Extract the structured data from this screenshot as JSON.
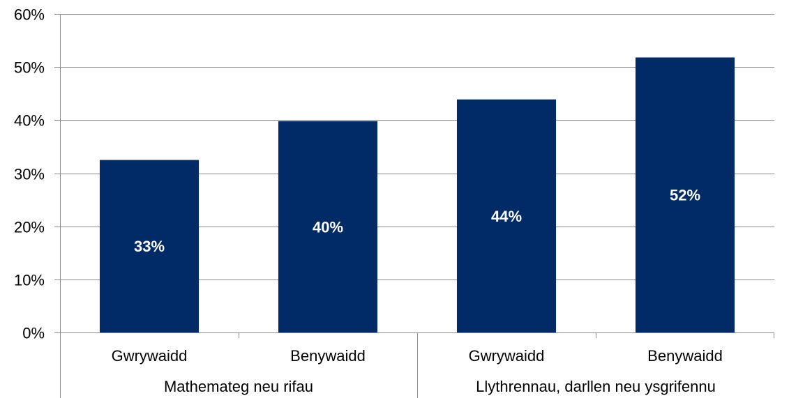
{
  "chart_data": {
    "type": "bar",
    "groups": [
      {
        "label": "Mathemateg neu rifau",
        "categories": [
          "Gwrywaidd",
          "Benywaidd"
        ]
      },
      {
        "label": "Llythrennau, darllen neu ysgrifennu",
        "categories": [
          "Gwrywaidd",
          "Benywaidd"
        ]
      }
    ],
    "categories": [
      "Gwrywaidd",
      "Benywaidd",
      "Gwrywaidd",
      "Benywaidd"
    ],
    "values": [
      32.5,
      39.8,
      43.9,
      51.8
    ],
    "data_labels": [
      "33%",
      "40%",
      "44%",
      "52%"
    ],
    "y_ticks": [
      "0%",
      "10%",
      "20%",
      "30%",
      "40%",
      "50%",
      "60%"
    ],
    "ylim": [
      0,
      60
    ],
    "grid": true,
    "bar_color": "#002b66"
  }
}
